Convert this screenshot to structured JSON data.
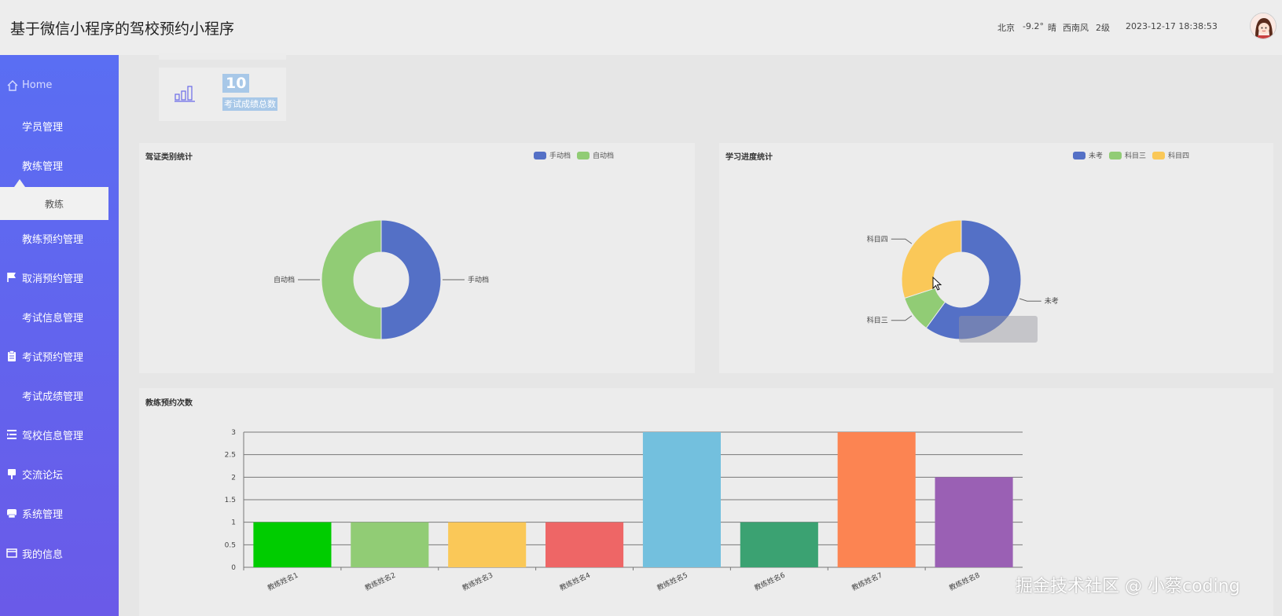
{
  "header": {
    "title": "基于微信小程序的驾校预约小程序",
    "city": "北京",
    "temperature": "-9.2°",
    "weather": "晴",
    "wind": "西南风",
    "wind_level": "2级",
    "datetime": "2023-12-17 18:38:53"
  },
  "sidebar": {
    "items": [
      {
        "label": "Home",
        "icon": "home-icon"
      },
      {
        "label": "学员管理",
        "icon": "grid-icon"
      },
      {
        "label": "教练管理",
        "icon": "grid-icon"
      },
      {
        "label": "教练预约管理",
        "icon": "grid-icon"
      },
      {
        "label": "取消预约管理",
        "icon": "flag-icon"
      },
      {
        "label": "考试信息管理",
        "icon": "grid-icon"
      },
      {
        "label": "考试预约管理",
        "icon": "clipboard-icon"
      },
      {
        "label": "考试成绩管理",
        "icon": "grid-icon"
      },
      {
        "label": "驾校信息管理",
        "icon": "list-icon"
      },
      {
        "label": "交流论坛",
        "icon": "pin-icon"
      },
      {
        "label": "系统管理",
        "icon": "printer-icon"
      },
      {
        "label": "我的信息",
        "icon": "window-icon"
      }
    ],
    "sub_item": "教练"
  },
  "stat_card": {
    "value": "10",
    "label": "考试成绩总数",
    "icon": "bar-chart-icon"
  },
  "panels": {
    "license_type": {
      "title": "驾证类别统计"
    },
    "progress": {
      "title": "学习进度统计"
    },
    "coach_bookings": {
      "title": "教练预约次数"
    }
  },
  "colors": {
    "blue": "#5470c6",
    "green": "#91cc75",
    "yellow": "#fac858",
    "red": "#ee6666",
    "lightblue": "#73c0de",
    "teal": "#3ba272",
    "orange": "#fc8452",
    "purple": "#9a60b4",
    "limegreen": "#00cc00"
  },
  "chart_data": [
    {
      "type": "pie",
      "title": "驾证类别统计",
      "legend": "top-right",
      "donut": true,
      "series": [
        {
          "name": "手动档",
          "value": 1,
          "color": "#5470c6"
        },
        {
          "name": "自动档",
          "value": 1,
          "color": "#91cc75"
        }
      ]
    },
    {
      "type": "pie",
      "title": "学习进度统计",
      "legend": "top-right",
      "donut": true,
      "series": [
        {
          "name": "未考",
          "value": 6,
          "color": "#5470c6"
        },
        {
          "name": "科目三",
          "value": 1,
          "color": "#91cc75"
        },
        {
          "name": "科目四",
          "value": 3,
          "color": "#fac858"
        }
      ]
    },
    {
      "type": "bar",
      "title": "教练预约次数",
      "categories": [
        "教练姓名1",
        "教练姓名2",
        "教练姓名3",
        "教练姓名4",
        "教练姓名5",
        "教练姓名6",
        "教练姓名7",
        "教练姓名8"
      ],
      "values": [
        1,
        1,
        1,
        1,
        3,
        1,
        3,
        2
      ],
      "colors": [
        "#00cc00",
        "#91cc75",
        "#fac858",
        "#ee6666",
        "#73c0de",
        "#3ba272",
        "#fc8452",
        "#9a60b4"
      ],
      "ylim": [
        0,
        3
      ],
      "yticks": [
        "0",
        "0.5",
        "1",
        "1.5",
        "2",
        "2.5",
        "3"
      ],
      "grid": true
    }
  ],
  "watermark": "掘金技术社区 @ 小蔡coding"
}
